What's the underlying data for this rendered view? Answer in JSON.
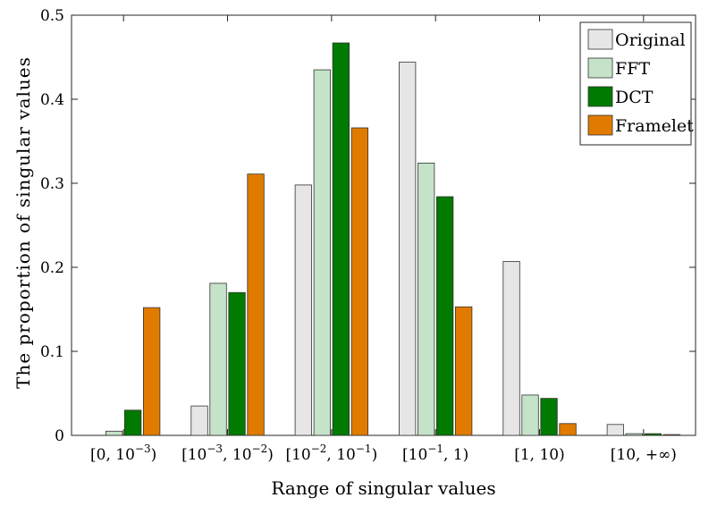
{
  "chart_data": {
    "type": "bar",
    "xlabel": "Range of singular values",
    "ylabel": "The proportion of singular values",
    "ylim": [
      0,
      0.5
    ],
    "yticks": [
      "0",
      "0.1",
      "0.2",
      "0.3",
      "0.4",
      "0.5"
    ],
    "categories": [
      {
        "base": "[0, 10",
        "sup": "−3",
        "tail": ")"
      },
      {
        "base": "[10",
        "sup": "−3",
        "mid": ", 10",
        "sup2": "−2",
        "tail": ")"
      },
      {
        "base": "[10",
        "sup": "−2",
        "mid": ", 10",
        "sup2": "−1",
        "tail": ")"
      },
      {
        "base": "[10",
        "sup": "−1",
        "tail": ", 1)"
      },
      {
        "base": "[1, 10)"
      },
      {
        "base": "[10, +∞)"
      }
    ],
    "series": [
      {
        "name": "Original",
        "color": "#e6e6e6",
        "values": [
          0.0,
          0.035,
          0.298,
          0.444,
          0.207,
          0.013
        ]
      },
      {
        "name": "FFT",
        "color": "#c4e3c8",
        "values": [
          0.005,
          0.181,
          0.435,
          0.324,
          0.048,
          0.002
        ]
      },
      {
        "name": "DCT",
        "color": "#007a00",
        "values": [
          0.03,
          0.17,
          0.467,
          0.284,
          0.044,
          0.002
        ]
      },
      {
        "name": "Framelet",
        "color": "#e07b00",
        "values": [
          0.152,
          0.311,
          0.366,
          0.153,
          0.014,
          0.001
        ]
      }
    ],
    "legend_position": "top-right"
  }
}
